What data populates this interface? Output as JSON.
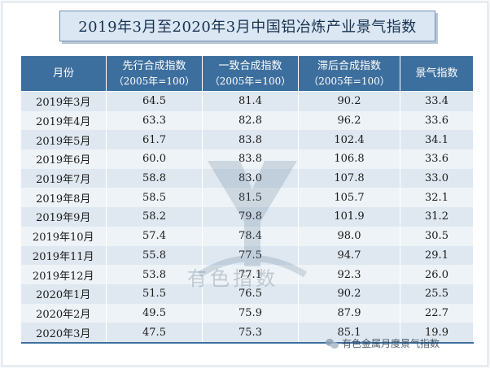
{
  "title": "2019年3月至2020年3月中国铝冶炼产业景气指数",
  "headers": [
    {
      "label": "月份",
      "sub": ""
    },
    {
      "label": "先行合成指数",
      "sub": "（2005年=100）"
    },
    {
      "label": "一致合成指数",
      "sub": "（2005年=100）"
    },
    {
      "label": "滞后合成指数",
      "sub": "（2005年=100）"
    },
    {
      "label": "景气指数",
      "sub": ""
    }
  ],
  "rows": [
    {
      "month": "2019年3月",
      "lead": "64.5",
      "coin": "81.4",
      "lag": "90.2",
      "index": "33.4"
    },
    {
      "month": "2019年4月",
      "lead": "63.3",
      "coin": "82.8",
      "lag": "96.2",
      "index": "33.6"
    },
    {
      "month": "2019年5月",
      "lead": "61.7",
      "coin": "83.8",
      "lag": "102.4",
      "index": "34.1"
    },
    {
      "month": "2019年6月",
      "lead": "60.0",
      "coin": "83.8",
      "lag": "106.8",
      "index": "33.6"
    },
    {
      "month": "2019年7月",
      "lead": "58.8",
      "coin": "83.0",
      "lag": "107.8",
      "index": "33.0"
    },
    {
      "month": "2019年8月",
      "lead": "58.5",
      "coin": "81.5",
      "lag": "105.7",
      "index": "32.1"
    },
    {
      "month": "2019年9月",
      "lead": "58.2",
      "coin": "79.8",
      "lag": "101.9",
      "index": "31.2"
    },
    {
      "month": "2019年10月",
      "lead": "57.4",
      "coin": "78.4",
      "lag": "98.0",
      "index": "30.5"
    },
    {
      "month": "2019年11月",
      "lead": "55.8",
      "coin": "77.5",
      "lag": "94.7",
      "index": "29.1"
    },
    {
      "month": "2019年12月",
      "lead": "53.8",
      "coin": "77.1",
      "lag": "92.3",
      "index": "26.0"
    },
    {
      "month": "2020年1月",
      "lead": "51.5",
      "coin": "76.5",
      "lag": "90.2",
      "index": "25.5"
    },
    {
      "month": "2020年2月",
      "lead": "49.5",
      "coin": "75.9",
      "lag": "87.9",
      "index": "22.7"
    },
    {
      "month": "2020年3月",
      "lead": "47.5",
      "coin": "75.3",
      "lag": "85.1",
      "index": "19.9"
    }
  ],
  "watermark": "有色指数",
  "footer": "有色金属月度景气指数",
  "colors": {
    "header_bg": "#3d6f9e",
    "row_odd": "#dfe8f1",
    "row_even": "#eef3f7",
    "title_bg": "#dbe7f3"
  }
}
